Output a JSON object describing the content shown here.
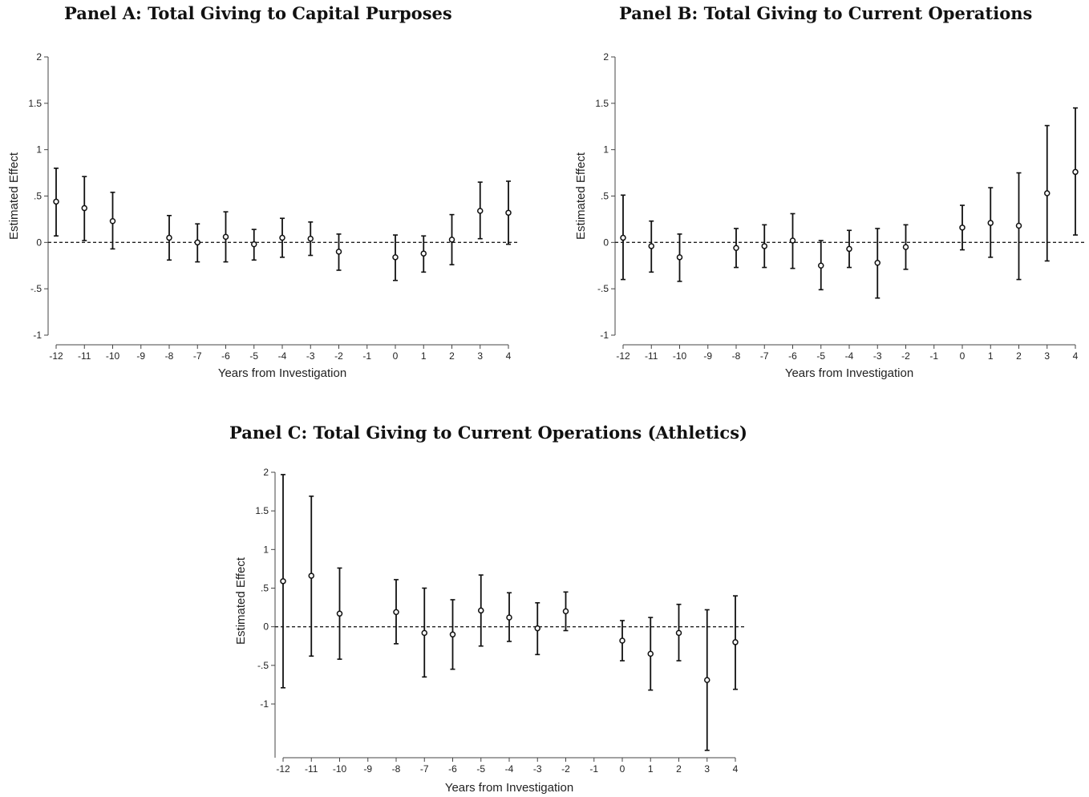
{
  "chart_data": [
    {
      "id": "panelA",
      "type": "scatter",
      "title": "Panel A: Total Giving to Capital Purposes",
      "xlabel": "Years from Investigation",
      "ylabel": "Estimated Effect",
      "xlim": [
        -12,
        4
      ],
      "ylim": [
        -1,
        2
      ],
      "xticks": [
        "-12",
        "-11",
        "-10",
        "-9",
        "-8",
        "-7",
        "-6",
        "-5",
        "-4",
        "-3",
        "-2",
        "-1",
        "0",
        "1",
        "2",
        "3",
        "4"
      ],
      "yticks": [
        {
          "v": -1,
          "label": "-1"
        },
        {
          "v": -0.5,
          "label": "-.5"
        },
        {
          "v": 0,
          "label": "0"
        },
        {
          "v": 0.5,
          "label": ".5"
        },
        {
          "v": 1,
          "label": "1"
        },
        {
          "v": 1.5,
          "label": "1.5"
        },
        {
          "v": 2,
          "label": "2"
        }
      ],
      "reference_line": 0,
      "points": [
        {
          "x": -12,
          "y": 0.44,
          "lo": 0.07,
          "hi": 0.8
        },
        {
          "x": -11,
          "y": 0.37,
          "lo": 0.02,
          "hi": 0.71
        },
        {
          "x": -10,
          "y": 0.23,
          "lo": -0.07,
          "hi": 0.54
        },
        {
          "x": -8,
          "y": 0.05,
          "lo": -0.19,
          "hi": 0.29
        },
        {
          "x": -7,
          "y": 0.0,
          "lo": -0.21,
          "hi": 0.2
        },
        {
          "x": -6,
          "y": 0.06,
          "lo": -0.21,
          "hi": 0.33
        },
        {
          "x": -5,
          "y": -0.02,
          "lo": -0.19,
          "hi": 0.14
        },
        {
          "x": -4,
          "y": 0.05,
          "lo": -0.16,
          "hi": 0.26
        },
        {
          "x": -3,
          "y": 0.04,
          "lo": -0.14,
          "hi": 0.22
        },
        {
          "x": -2,
          "y": -0.1,
          "lo": -0.3,
          "hi": 0.09
        },
        {
          "x": 0,
          "y": -0.16,
          "lo": -0.41,
          "hi": 0.08
        },
        {
          "x": 1,
          "y": -0.12,
          "lo": -0.32,
          "hi": 0.07
        },
        {
          "x": 2,
          "y": 0.03,
          "lo": -0.24,
          "hi": 0.3
        },
        {
          "x": 3,
          "y": 0.34,
          "lo": 0.04,
          "hi": 0.65
        },
        {
          "x": 4,
          "y": 0.32,
          "lo": -0.02,
          "hi": 0.66
        }
      ]
    },
    {
      "id": "panelB",
      "type": "scatter",
      "title": "Panel B: Total Giving to Current Operations",
      "xlabel": "Years from Investigation",
      "ylabel": "Estimated Effect",
      "xlim": [
        -12,
        4
      ],
      "ylim": [
        -1,
        2
      ],
      "xticks": [
        "-12",
        "-11",
        "-10",
        "-9",
        "-8",
        "-7",
        "-6",
        "-5",
        "-4",
        "-3",
        "-2",
        "-1",
        "0",
        "1",
        "2",
        "3",
        "4"
      ],
      "yticks": [
        {
          "v": -1,
          "label": "-1"
        },
        {
          "v": -0.5,
          "label": "-.5"
        },
        {
          "v": 0,
          "label": "0"
        },
        {
          "v": 0.5,
          "label": ".5"
        },
        {
          "v": 1,
          "label": "1"
        },
        {
          "v": 1.5,
          "label": "1.5"
        },
        {
          "v": 2,
          "label": "2"
        }
      ],
      "reference_line": 0,
      "points": [
        {
          "x": -12,
          "y": 0.05,
          "lo": -0.4,
          "hi": 0.51
        },
        {
          "x": -11,
          "y": -0.04,
          "lo": -0.32,
          "hi": 0.23
        },
        {
          "x": -10,
          "y": -0.16,
          "lo": -0.42,
          "hi": 0.09
        },
        {
          "x": -8,
          "y": -0.06,
          "lo": -0.27,
          "hi": 0.15
        },
        {
          "x": -7,
          "y": -0.04,
          "lo": -0.27,
          "hi": 0.19
        },
        {
          "x": -6,
          "y": 0.02,
          "lo": -0.28,
          "hi": 0.31
        },
        {
          "x": -5,
          "y": -0.25,
          "lo": -0.51,
          "hi": 0.02
        },
        {
          "x": -4,
          "y": -0.07,
          "lo": -0.27,
          "hi": 0.13
        },
        {
          "x": -3,
          "y": -0.22,
          "lo": -0.6,
          "hi": 0.15
        },
        {
          "x": -2,
          "y": -0.05,
          "lo": -0.29,
          "hi": 0.19
        },
        {
          "x": 0,
          "y": 0.16,
          "lo": -0.08,
          "hi": 0.4
        },
        {
          "x": 1,
          "y": 0.21,
          "lo": -0.16,
          "hi": 0.59
        },
        {
          "x": 2,
          "y": 0.18,
          "lo": -0.4,
          "hi": 0.75
        },
        {
          "x": 3,
          "y": 0.53,
          "lo": -0.2,
          "hi": 1.26
        },
        {
          "x": 4,
          "y": 0.76,
          "lo": 0.08,
          "hi": 1.45
        }
      ]
    },
    {
      "id": "panelC",
      "type": "scatter",
      "title": "Panel C: Total Giving to Current Operations (Athletics)",
      "xlabel": "Years from Investigation",
      "ylabel": "Estimated Effect",
      "xlim": [
        -12,
        4
      ],
      "ylim": [
        -1.7,
        2
      ],
      "xticks": [
        "-12",
        "-11",
        "-10",
        "-9",
        "-8",
        "-7",
        "-6",
        "-5",
        "-4",
        "-3",
        "-2",
        "-1",
        "0",
        "1",
        "2",
        "3",
        "4"
      ],
      "yticks": [
        {
          "v": -1,
          "label": "-1"
        },
        {
          "v": -0.5,
          "label": "-.5"
        },
        {
          "v": 0,
          "label": "0"
        },
        {
          "v": 0.5,
          "label": ".5"
        },
        {
          "v": 1,
          "label": "1"
        },
        {
          "v": 1.5,
          "label": "1.5"
        },
        {
          "v": 2,
          "label": "2"
        }
      ],
      "reference_line": 0,
      "points": [
        {
          "x": -12,
          "y": 0.59,
          "lo": -0.79,
          "hi": 1.97
        },
        {
          "x": -11,
          "y": 0.66,
          "lo": -0.38,
          "hi": 1.69
        },
        {
          "x": -10,
          "y": 0.17,
          "lo": -0.42,
          "hi": 0.76
        },
        {
          "x": -8,
          "y": 0.19,
          "lo": -0.22,
          "hi": 0.61
        },
        {
          "x": -7,
          "y": -0.08,
          "lo": -0.65,
          "hi": 0.5
        },
        {
          "x": -6,
          "y": -0.1,
          "lo": -0.55,
          "hi": 0.35
        },
        {
          "x": -5,
          "y": 0.21,
          "lo": -0.25,
          "hi": 0.67
        },
        {
          "x": -4,
          "y": 0.12,
          "lo": -0.19,
          "hi": 0.44
        },
        {
          "x": -3,
          "y": -0.02,
          "lo": -0.36,
          "hi": 0.31
        },
        {
          "x": -2,
          "y": 0.2,
          "lo": -0.05,
          "hi": 0.45
        },
        {
          "x": 0,
          "y": -0.18,
          "lo": -0.44,
          "hi": 0.08
        },
        {
          "x": 1,
          "y": -0.35,
          "lo": -0.82,
          "hi": 0.12
        },
        {
          "x": 2,
          "y": -0.08,
          "lo": -0.44,
          "hi": 0.29
        },
        {
          "x": 3,
          "y": -0.69,
          "lo": -1.6,
          "hi": 0.22
        },
        {
          "x": 4,
          "y": -0.2,
          "lo": -0.81,
          "hi": 0.4
        }
      ]
    }
  ]
}
